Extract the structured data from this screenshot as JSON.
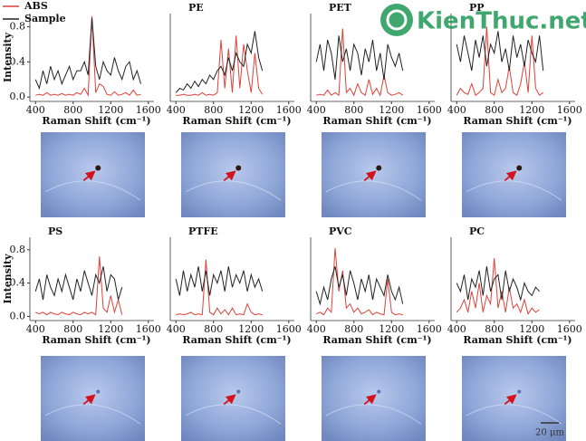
{
  "chart_data": [
    {
      "type": "line",
      "xlabel": "Raman Shift (cm⁻¹)",
      "ylabel": "Intensity",
      "xlim": [
        340,
        1660
      ],
      "ylim": [
        -0.05,
        0.95
      ],
      "xticks": [
        400,
        800,
        1200,
        1600
      ],
      "yticks": [
        {
          "value": 0.0,
          "label": "0.0"
        },
        {
          "value": 0.4,
          "label": "0.4"
        },
        {
          "value": 0.8,
          "label": "0.8"
        }
      ],
      "x": [
        400,
        440,
        480,
        520,
        560,
        600,
        640,
        680,
        720,
        760,
        800,
        840,
        880,
        920,
        960,
        1000,
        1040,
        1080,
        1120,
        1160,
        1200,
        1240,
        1280,
        1320,
        1360,
        1400,
        1440,
        1480,
        1520
      ],
      "series": [
        {
          "name": "ABS",
          "color": "#e0403a",
          "values": [
            0.02,
            0.03,
            0.02,
            0.05,
            0.02,
            0.03,
            0.02,
            0.04,
            0.02,
            0.03,
            0.02,
            0.05,
            0.03,
            0.1,
            0.02,
            0.92,
            0.05,
            0.15,
            0.12,
            0.03,
            0.02,
            0.06,
            0.02,
            0.03,
            0.05,
            0.02,
            0.08,
            0.02,
            0.03
          ]
        },
        {
          "name": "Sample",
          "color": "#222222",
          "values": [
            0.2,
            0.1,
            0.3,
            0.15,
            0.35,
            0.2,
            0.3,
            0.15,
            0.25,
            0.35,
            0.2,
            0.3,
            0.3,
            0.4,
            0.25,
            0.9,
            0.35,
            0.2,
            0.4,
            0.3,
            0.25,
            0.45,
            0.3,
            0.2,
            0.35,
            0.4,
            0.2,
            0.3,
            0.15
          ]
        }
      ]
    },
    {
      "type": "line",
      "title": "PE",
      "xlabel": "Raman Shift (cm⁻¹)",
      "xlim": [
        340,
        1660
      ],
      "ylim": [
        -0.05,
        0.95
      ],
      "xticks": [
        400,
        800,
        1200,
        1600
      ],
      "x": [
        400,
        440,
        480,
        520,
        560,
        600,
        640,
        680,
        720,
        760,
        800,
        840,
        880,
        920,
        960,
        1000,
        1040,
        1080,
        1120,
        1160,
        1200,
        1240,
        1280,
        1320
      ],
      "series": [
        {
          "color": "#e0403a",
          "values": [
            0.02,
            0.02,
            0.03,
            0.02,
            0.02,
            0.03,
            0.02,
            0.05,
            0.02,
            0.03,
            0.02,
            0.05,
            0.65,
            0.1,
            0.55,
            0.05,
            0.7,
            0.1,
            0.6,
            0.3,
            0.05,
            0.5,
            0.1,
            0.03
          ]
        },
        {
          "color": "#222222",
          "values": [
            0.05,
            0.1,
            0.08,
            0.15,
            0.1,
            0.18,
            0.12,
            0.2,
            0.15,
            0.25,
            0.2,
            0.3,
            0.35,
            0.25,
            0.45,
            0.3,
            0.5,
            0.4,
            0.35,
            0.6,
            0.5,
            0.75,
            0.45,
            0.3
          ]
        }
      ]
    },
    {
      "type": "line",
      "title": "PET",
      "xlabel": "Raman Shift (cm⁻¹)",
      "xlim": [
        340,
        1660
      ],
      "ylim": [
        -0.05,
        0.95
      ],
      "xticks": [
        400,
        800,
        1200,
        1600
      ],
      "x": [
        400,
        440,
        480,
        520,
        560,
        600,
        640,
        680,
        720,
        760,
        800,
        840,
        880,
        920,
        960,
        1000,
        1040,
        1080,
        1120,
        1160,
        1200,
        1240,
        1280,
        1320
      ],
      "series": [
        {
          "color": "#e0403a",
          "values": [
            0.02,
            0.03,
            0.02,
            0.08,
            0.02,
            0.05,
            0.02,
            0.78,
            0.05,
            0.1,
            0.02,
            0.15,
            0.05,
            0.02,
            0.2,
            0.03,
            0.1,
            0.02,
            0.25,
            0.05,
            0.02,
            0.03,
            0.05,
            0.02
          ]
        },
        {
          "color": "#222222",
          "values": [
            0.4,
            0.6,
            0.3,
            0.65,
            0.5,
            0.2,
            0.7,
            0.4,
            0.55,
            0.3,
            0.6,
            0.5,
            0.25,
            0.55,
            0.4,
            0.65,
            0.3,
            0.5,
            0.2,
            0.6,
            0.45,
            0.35,
            0.5,
            0.3
          ]
        }
      ]
    },
    {
      "type": "line",
      "title": "PP",
      "xlabel": "Raman Shift (cm⁻¹)",
      "xlim": [
        340,
        1660
      ],
      "ylim": [
        -0.05,
        0.95
      ],
      "xticks": [
        400,
        800,
        1200,
        1600
      ],
      "x": [
        400,
        440,
        480,
        520,
        560,
        600,
        640,
        680,
        720,
        760,
        800,
        840,
        880,
        920,
        960,
        1000,
        1040,
        1080,
        1120,
        1160,
        1200,
        1240,
        1280,
        1320
      ],
      "series": [
        {
          "color": "#e0403a",
          "values": [
            0.02,
            0.1,
            0.05,
            0.03,
            0.15,
            0.02,
            0.05,
            0.1,
            0.8,
            0.05,
            0.02,
            0.2,
            0.05,
            0.1,
            0.35,
            0.05,
            0.02,
            0.15,
            0.4,
            0.05,
            0.7,
            0.1,
            0.02,
            0.05
          ]
        },
        {
          "color": "#222222",
          "values": [
            0.6,
            0.4,
            0.7,
            0.5,
            0.3,
            0.65,
            0.45,
            0.7,
            0.35,
            0.6,
            0.5,
            0.75,
            0.4,
            0.55,
            0.3,
            0.7,
            0.45,
            0.6,
            0.35,
            0.65,
            0.5,
            0.4,
            0.7,
            0.3
          ]
        }
      ]
    },
    {
      "type": "line",
      "title": "PS",
      "xlabel": "Raman Shift (cm⁻¹)",
      "ylabel": "Intensity",
      "xlim": [
        340,
        1660
      ],
      "ylim": [
        -0.05,
        0.95
      ],
      "xticks": [
        400,
        800,
        1200,
        1600
      ],
      "yticks": [
        {
          "value": 0.0,
          "label": "0.0"
        },
        {
          "value": 0.4,
          "label": "0.4"
        },
        {
          "value": 0.8,
          "label": "0.8"
        }
      ],
      "x": [
        400,
        440,
        480,
        520,
        560,
        600,
        640,
        680,
        720,
        760,
        800,
        840,
        880,
        920,
        960,
        1000,
        1040,
        1080,
        1120,
        1160,
        1200,
        1240,
        1280,
        1320
      ],
      "series": [
        {
          "color": "#e0403a",
          "values": [
            0.05,
            0.03,
            0.05,
            0.02,
            0.05,
            0.03,
            0.02,
            0.05,
            0.03,
            0.02,
            0.05,
            0.03,
            0.02,
            0.05,
            0.03,
            0.05,
            0.02,
            0.72,
            0.1,
            0.05,
            0.25,
            0.05,
            0.2,
            0.02
          ]
        },
        {
          "color": "#222222",
          "values": [
            0.3,
            0.45,
            0.2,
            0.5,
            0.35,
            0.25,
            0.45,
            0.3,
            0.5,
            0.35,
            0.2,
            0.45,
            0.3,
            0.55,
            0.4,
            0.25,
            0.5,
            0.4,
            0.6,
            0.3,
            0.5,
            0.45,
            0.2,
            0.35
          ]
        }
      ]
    },
    {
      "type": "line",
      "title": "PTFE",
      "xlabel": "Raman Shift (cm⁻¹)",
      "xlim": [
        340,
        1660
      ],
      "ylim": [
        -0.05,
        0.95
      ],
      "xticks": [
        400,
        800,
        1200,
        1600
      ],
      "x": [
        400,
        440,
        480,
        520,
        560,
        600,
        640,
        680,
        720,
        760,
        800,
        840,
        880,
        920,
        960,
        1000,
        1040,
        1080,
        1120,
        1160,
        1200,
        1240,
        1280,
        1320
      ],
      "series": [
        {
          "color": "#e0403a",
          "values": [
            0.02,
            0.03,
            0.02,
            0.03,
            0.05,
            0.02,
            0.03,
            0.02,
            0.68,
            0.05,
            0.02,
            0.1,
            0.03,
            0.08,
            0.02,
            0.1,
            0.02,
            0.03,
            0.02,
            0.15,
            0.05,
            0.02,
            0.03,
            0.02
          ]
        },
        {
          "color": "#222222",
          "values": [
            0.45,
            0.25,
            0.55,
            0.3,
            0.5,
            0.35,
            0.6,
            0.3,
            0.55,
            0.25,
            0.5,
            0.4,
            0.55,
            0.3,
            0.6,
            0.35,
            0.5,
            0.4,
            0.55,
            0.3,
            0.5,
            0.35,
            0.45,
            0.3
          ]
        }
      ]
    },
    {
      "type": "line",
      "title": "PVC",
      "xlabel": "Raman Shift (cm⁻¹)",
      "xlim": [
        340,
        1660
      ],
      "ylim": [
        -0.05,
        0.95
      ],
      "xticks": [
        400,
        800,
        1200,
        1600
      ],
      "x": [
        400,
        440,
        480,
        520,
        560,
        600,
        640,
        680,
        720,
        760,
        800,
        840,
        880,
        920,
        960,
        1000,
        1040,
        1080,
        1120,
        1160,
        1200,
        1240,
        1280,
        1320
      ],
      "series": [
        {
          "color": "#e0403a",
          "values": [
            0.03,
            0.05,
            0.02,
            0.1,
            0.05,
            0.82,
            0.3,
            0.55,
            0.1,
            0.15,
            0.05,
            0.1,
            0.03,
            0.05,
            0.08,
            0.02,
            0.05,
            0.03,
            0.02,
            0.45,
            0.05,
            0.02,
            0.03,
            0.02
          ]
        },
        {
          "color": "#222222",
          "values": [
            0.3,
            0.15,
            0.35,
            0.2,
            0.45,
            0.6,
            0.35,
            0.5,
            0.25,
            0.55,
            0.4,
            0.2,
            0.45,
            0.3,
            0.5,
            0.2,
            0.45,
            0.35,
            0.25,
            0.5,
            0.3,
            0.2,
            0.35,
            0.15
          ]
        }
      ]
    },
    {
      "type": "line",
      "title": "PC",
      "xlabel": "Raman Shift (cm⁻¹)",
      "xlim": [
        340,
        1660
      ],
      "ylim": [
        -0.05,
        0.95
      ],
      "xticks": [
        400,
        800,
        1200,
        1600
      ],
      "x": [
        400,
        440,
        480,
        520,
        560,
        600,
        640,
        680,
        720,
        760,
        800,
        840,
        880,
        920,
        960,
        1000,
        1040,
        1080,
        1120,
        1160,
        1200,
        1240,
        1280
      ],
      "series": [
        {
          "color": "#e0403a",
          "values": [
            0.05,
            0.1,
            0.2,
            0.05,
            0.3,
            0.1,
            0.4,
            0.05,
            0.25,
            0.15,
            0.7,
            0.1,
            0.3,
            0.05,
            0.35,
            0.1,
            0.15,
            0.05,
            0.2,
            0.03,
            0.1,
            0.05,
            0.08
          ]
        },
        {
          "color": "#222222",
          "values": [
            0.4,
            0.3,
            0.5,
            0.2,
            0.45,
            0.35,
            0.55,
            0.25,
            0.6,
            0.3,
            0.45,
            0.5,
            0.2,
            0.55,
            0.3,
            0.45,
            0.35,
            0.2,
            0.4,
            0.3,
            0.25,
            0.35,
            0.3
          ]
        }
      ]
    }
  ],
  "scale_bar": "20 μm",
  "watermark": "KienThuc.net.vn"
}
